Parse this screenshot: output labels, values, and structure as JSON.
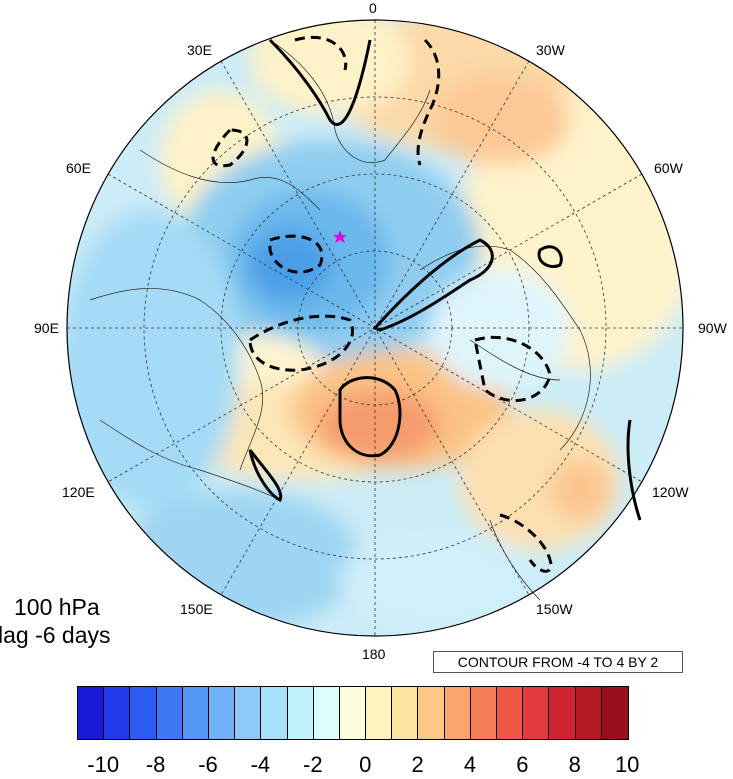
{
  "lon_labels": {
    "l0": "0",
    "l30e": "30E",
    "l30w": "30W",
    "l60e": "60E",
    "l60w": "60W",
    "l90e": "90E",
    "l90w": "90W",
    "l120e": "120E",
    "l120w": "120W",
    "l150e": "150E",
    "l150w": "150W",
    "l180": "180"
  },
  "title": {
    "level": "100 hPa",
    "lag": "lag -6 days"
  },
  "contour_info": "CONTOUR FROM -4 TO 4 BY 2",
  "colorbar": {
    "colors": [
      "#1a1ad6",
      "#1f3ae8",
      "#2a5cf0",
      "#3d7af2",
      "#5496f5",
      "#6fb0f7",
      "#8ccaf8",
      "#a6e0fa",
      "#bff2fb",
      "#dcfdfd",
      "#fffde0",
      "#fff2bc",
      "#fde2a2",
      "#fbc886",
      "#f8a66c",
      "#f47f56",
      "#ee5645",
      "#e33a3c",
      "#cf2430",
      "#b41a22",
      "#97101b"
    ],
    "ticks": [
      "-10",
      "-8",
      "-6",
      "-4",
      "-2",
      "0",
      "2",
      "4",
      "6",
      "8",
      "10"
    ]
  },
  "marker_color": "#e100e1"
}
